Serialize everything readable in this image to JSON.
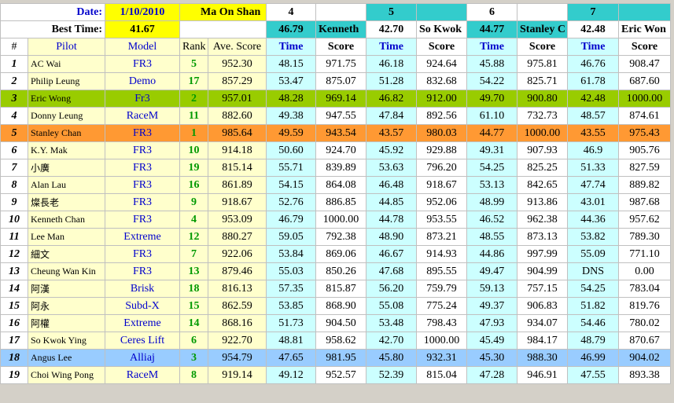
{
  "header": {
    "date_label": "Date:",
    "date": "1/10/2010",
    "venue": "Ma On Shan",
    "rounds": [
      "4",
      "5",
      "6",
      "7"
    ],
    "best_time_label": "Best Time:",
    "best_time": "41.67",
    "round_best": [
      {
        "time": "46.79",
        "pilot": "Kenneth"
      },
      {
        "time": "42.70",
        "pilot": "So Kwok"
      },
      {
        "time": "44.77",
        "pilot": "Stanley C"
      },
      {
        "time": "42.48",
        "pilot": "Eric Won"
      }
    ]
  },
  "table": {
    "columns": [
      "#",
      "Pilot",
      "Model",
      "Rank",
      "Ave. Score",
      "Time",
      "Score",
      "Time",
      "Score",
      "Time",
      "Score",
      "Time",
      "Score"
    ],
    "rows": [
      [
        "1",
        "AC Wai",
        "FR3",
        "5",
        "952.30",
        "48.15",
        "971.75",
        "46.18",
        "924.64",
        "45.88",
        "975.81",
        "46.76",
        "908.47"
      ],
      [
        "2",
        "Philip Leung",
        "Demo",
        "17",
        "857.29",
        "53.47",
        "875.07",
        "51.28",
        "832.68",
        "54.22",
        "825.71",
        "61.78",
        "687.60"
      ],
      [
        "3",
        "Eric Wong",
        "Fr3",
        "2",
        "957.01",
        "48.28",
        "969.14",
        "46.82",
        "912.00",
        "49.70",
        "900.80",
        "42.48",
        "1000.00"
      ],
      [
        "4",
        "Donny  Leung",
        "RaceM",
        "11",
        "882.60",
        "49.38",
        "947.55",
        "47.84",
        "892.56",
        "61.10",
        "732.73",
        "48.57",
        "874.61"
      ],
      [
        "5",
        "Stanley Chan",
        "FR3",
        "1",
        "985.64",
        "49.59",
        "943.54",
        "43.57",
        "980.03",
        "44.77",
        "1000.00",
        "43.55",
        "975.43"
      ],
      [
        "6",
        "K.Y. Mak",
        "FR3",
        "10",
        "914.18",
        "50.60",
        "924.70",
        "45.92",
        "929.88",
        "49.31",
        "907.93",
        "46.9",
        "905.76"
      ],
      [
        "7",
        "小廣",
        "FR3",
        "19",
        "815.14",
        "55.71",
        "839.89",
        "53.63",
        "796.20",
        "54.25",
        "825.25",
        "51.33",
        "827.59"
      ],
      [
        "8",
        "Alan Lau",
        "FR3",
        "16",
        "861.89",
        "54.15",
        "864.08",
        "46.48",
        "918.67",
        "53.13",
        "842.65",
        "47.74",
        "889.82"
      ],
      [
        "9",
        "燦長老",
        "FR3",
        "9",
        "918.67",
        "52.76",
        "886.85",
        "44.85",
        "952.06",
        "48.99",
        "913.86",
        "43.01",
        "987.68"
      ],
      [
        "10",
        "Kenneth Chan",
        "FR3",
        "4",
        "953.09",
        "46.79",
        "1000.00",
        "44.78",
        "953.55",
        "46.52",
        "962.38",
        "44.36",
        "957.62"
      ],
      [
        "11",
        "Lee  Man",
        "Extreme",
        "12",
        "880.27",
        "59.05",
        "792.38",
        "48.90",
        "873.21",
        "48.55",
        "873.13",
        "53.82",
        "789.30"
      ],
      [
        "12",
        "細文",
        "FR3",
        "7",
        "922.06",
        "53.84",
        "869.06",
        "46.67",
        "914.93",
        "44.86",
        "997.99",
        "55.09",
        "771.10"
      ],
      [
        "13",
        "Cheung Wan Kin",
        "FR3",
        "13",
        "879.46",
        "55.03",
        "850.26",
        "47.68",
        "895.55",
        "49.47",
        "904.99",
        "DNS",
        "0.00"
      ],
      [
        "14",
        "阿漢",
        "Brisk",
        "18",
        "816.13",
        "57.35",
        "815.87",
        "56.20",
        "759.79",
        "59.13",
        "757.15",
        "54.25",
        "783.04"
      ],
      [
        "15",
        "阿永",
        "Subd-X",
        "15",
        "862.59",
        "53.85",
        "868.90",
        "55.08",
        "775.24",
        "49.37",
        "906.83",
        "51.82",
        "819.76"
      ],
      [
        "16",
        "阿權",
        "Extreme",
        "14",
        "868.16",
        "51.73",
        "904.50",
        "53.48",
        "798.43",
        "47.93",
        "934.07",
        "54.46",
        "780.02"
      ],
      [
        "17",
        "So Kwok Ying",
        "Ceres Lift",
        "6",
        "922.70",
        "48.81",
        "958.62",
        "42.70",
        "1000.00",
        "45.49",
        "984.17",
        "48.79",
        "870.67"
      ],
      [
        "18",
        "Angus Lee",
        "Alliaj",
        "3",
        "954.79",
        "47.65",
        "981.95",
        "45.80",
        "932.31",
        "45.30",
        "988.30",
        "46.99",
        "904.02"
      ],
      [
        "19",
        "Choi Wing Pong",
        "RaceM",
        "8",
        "919.14",
        "49.12",
        "952.57",
        "52.39",
        "815.04",
        "47.28",
        "946.91",
        "47.55",
        "893.38"
      ]
    ]
  }
}
